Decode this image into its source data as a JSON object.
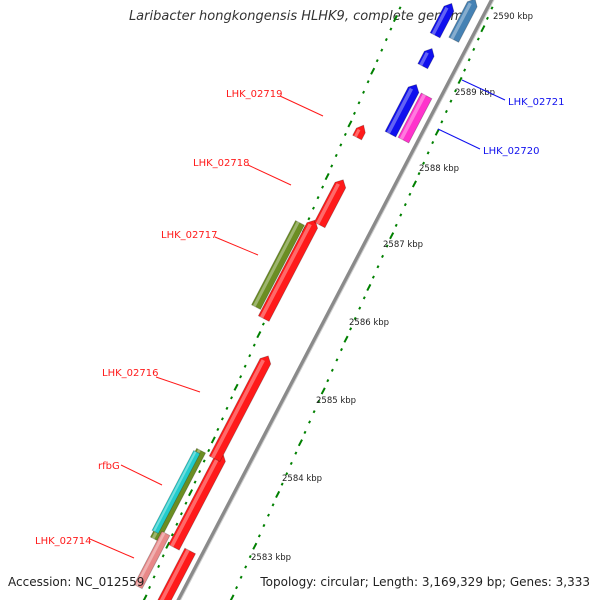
{
  "title": "Laribacter hongkongensis HLHK9, complete genome",
  "footer": {
    "accession": "Accession: NC_012559",
    "stats": "Topology: circular; Length: 3,169,329 bp; Genes: 3,333"
  },
  "colors": {
    "backbone": "#8a8a8a",
    "tick_dots": "#008000",
    "red": "#ff1a1a",
    "olive": "#6b8e23",
    "blue": "#1010ee",
    "magenta": "#ff33cc",
    "steelblue": "#4682b4",
    "cyan": "#22cccc",
    "pink": "#e88888"
  },
  "kbp_ticks": [
    "2583 kbp",
    "2584 kbp",
    "2585 kbp",
    "2586 kbp",
    "2587 kbp",
    "2588 kbp",
    "2589 kbp",
    "2590 kbp"
  ],
  "genes": [
    {
      "name": "LHK_02714",
      "color": "red"
    },
    {
      "name": "rfbG",
      "color": "red"
    },
    {
      "name": "LHK_02716",
      "color": "red"
    },
    {
      "name": "LHK_02717",
      "color": "red"
    },
    {
      "name": "LHK_02718",
      "color": "red"
    },
    {
      "name": "LHK_02719",
      "color": "red"
    },
    {
      "name": "LHK_02720",
      "color": "blue"
    },
    {
      "name": "LHK_02721",
      "color": "blue"
    }
  ]
}
